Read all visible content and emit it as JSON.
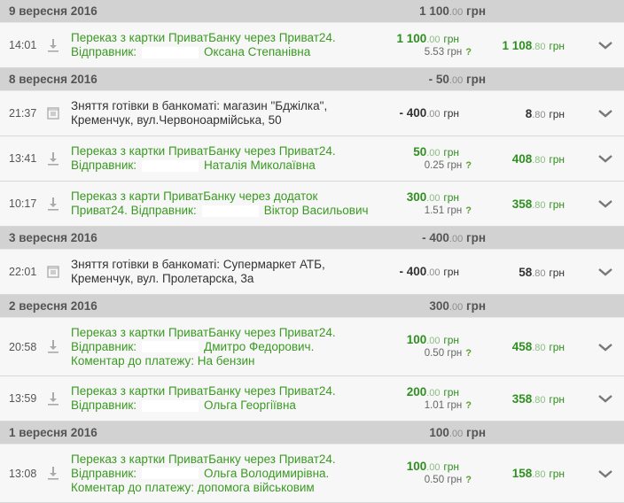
{
  "colors": {
    "green": "#3a9a22",
    "header_bg": "#d2d2d2",
    "row_bg": "#f7f7f7"
  },
  "currency": "грн",
  "fee_help": "?",
  "sections": [
    {
      "date": "9 вересня 2016",
      "total_int": "1 100",
      "total_dec": ".00",
      "items": [
        {
          "time": "14:01",
          "icon": "download-arrow-icon",
          "type": "income",
          "lines": [
            "Переказ з картки ПриватБанку через Приват24."
          ],
          "sender_label": "Відправник:",
          "sender": "Оксана Степанівна",
          "amount_int": "1 100",
          "amount_dec": ".00",
          "fee": "5.53",
          "balance_int": "1 108",
          "balance_dec": ".80"
        }
      ]
    },
    {
      "date": "8 вересня 2016",
      "total_int": "- 50",
      "total_dec": ".00",
      "items": [
        {
          "time": "21:37",
          "icon": "atm-icon",
          "type": "expense",
          "lines": [
            "Зняття готівки в банкоматі: магазин \"Бджілка\",",
            "Кременчук, вул.Червоноармійська, 50"
          ],
          "amount_int": "- 400",
          "amount_dec": ".00",
          "balance_int": "8",
          "balance_dec": ".80"
        },
        {
          "time": "13:41",
          "icon": "download-arrow-icon",
          "type": "income",
          "lines": [
            "Переказ з картки ПриватБанку через Приват24."
          ],
          "sender_label": "Відправник:",
          "sender": "Наталія Миколаївна",
          "amount_int": "50",
          "amount_dec": ".00",
          "fee": "0.25",
          "balance_int": "408",
          "balance_dec": ".80"
        },
        {
          "time": "10:17",
          "icon": "download-arrow-icon",
          "type": "income",
          "lines": [
            "Переказ з карти ПриватБанку через додаток"
          ],
          "sender_label": "Приват24. Відправник:",
          "sender": "Віктор Васильович",
          "amount_int": "300",
          "amount_dec": ".00",
          "fee": "1.51",
          "balance_int": "358",
          "balance_dec": ".80"
        }
      ]
    },
    {
      "date": "3 вересня 2016",
      "total_int": "- 400",
      "total_dec": ".00",
      "items": [
        {
          "time": "22:01",
          "icon": "atm-icon",
          "type": "expense",
          "lines": [
            "Зняття готівки в банкоматі: Супермаркет АТБ,",
            "Кременчук, вул. Пролетарска, 3а"
          ],
          "amount_int": "- 400",
          "amount_dec": ".00",
          "balance_int": "58",
          "balance_dec": ".80"
        }
      ]
    },
    {
      "date": "2 вересня 2016",
      "total_int": "300",
      "total_dec": ".00",
      "items": [
        {
          "time": "20:58",
          "icon": "download-arrow-icon",
          "type": "income",
          "lines": [
            "Переказ з картки ПриватБанку через Приват24."
          ],
          "sender_label": "Відправник:",
          "sender": "Дмитро Федорович.",
          "comment": "Коментар до платежу: На бензин",
          "amount_int": "100",
          "amount_dec": ".00",
          "fee": "0.50",
          "balance_int": "458",
          "balance_dec": ".80"
        },
        {
          "time": "13:59",
          "icon": "download-arrow-icon",
          "type": "income",
          "lines": [
            "Переказ з картки ПриватБанку через Приват24."
          ],
          "sender_label": "Відправник:",
          "sender": "Ольга Георгіївна",
          "amount_int": "200",
          "amount_dec": ".00",
          "fee": "1.01",
          "balance_int": "358",
          "balance_dec": ".80"
        }
      ]
    },
    {
      "date": "1 вересня 2016",
      "total_int": "100",
      "total_dec": ".00",
      "items": [
        {
          "time": "13:08",
          "icon": "download-arrow-icon",
          "type": "income",
          "lines": [
            "Переказ з картки ПриватБанку через Приват24."
          ],
          "sender_label": "Відправник:",
          "sender": "Ольга Володимирівна.",
          "comment": "Коментар до платежу: допомога військовим",
          "amount_int": "100",
          "amount_dec": ".00",
          "fee": "0.50",
          "balance_int": "158",
          "balance_dec": ".80"
        }
      ]
    }
  ]
}
